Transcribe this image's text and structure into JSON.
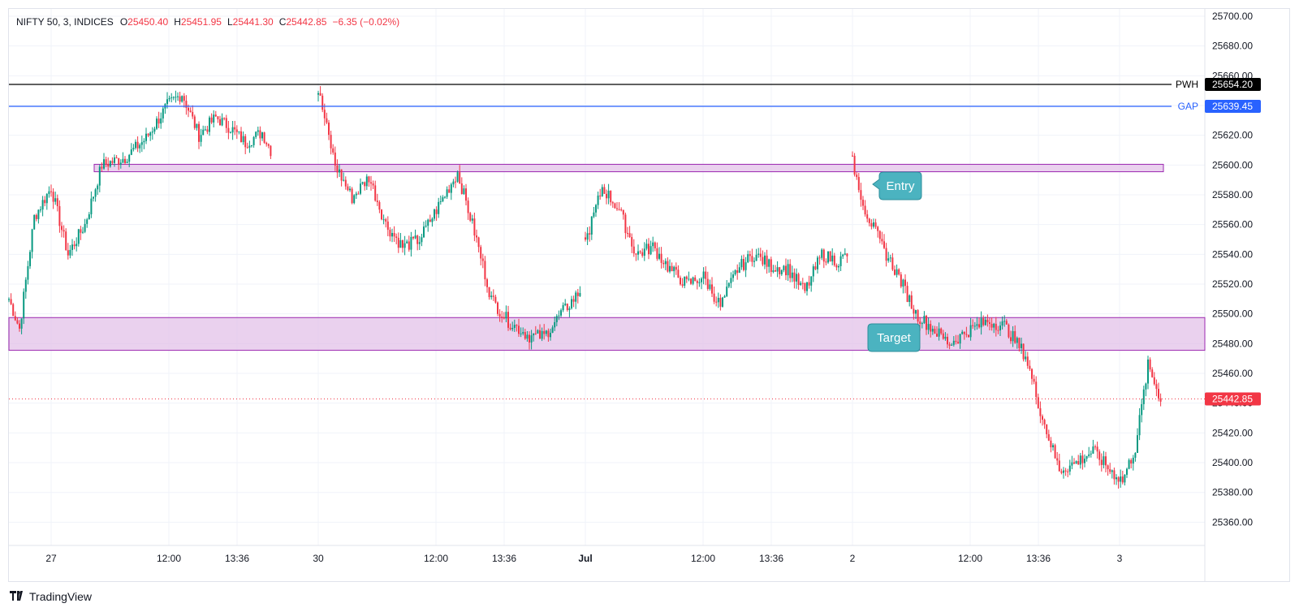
{
  "legend": {
    "symbol": "NIFTY 50, 3, INDICES",
    "o_label": "O",
    "o_value": "25450.40",
    "h_label": "H",
    "h_value": "25451.95",
    "l_label": "L",
    "l_value": "25441.30",
    "c_label": "C",
    "c_value": "25442.85",
    "change": "−6.35 (−0.02%)"
  },
  "brand": {
    "name": "TradingView",
    "logo": "tradingview-logo-icon"
  },
  "colors": {
    "up": "#089981",
    "down": "#f23645",
    "grid": "#f0f3fa",
    "pwh": "#000000",
    "gap": "#2962ff",
    "zone_fill": "#e1bee7",
    "zone_border": "#9c27b0",
    "note": "#4bb3c0"
  },
  "chart_data": {
    "type": "candlestick",
    "ylim": [
      25350,
      25710
    ],
    "y_ticks": [
      "25360.00",
      "25380.00",
      "25400.00",
      "25420.00",
      "25440.00",
      "25460.00",
      "25480.00",
      "25500.00",
      "25520.00",
      "25540.00",
      "25560.00",
      "25580.00",
      "25600.00",
      "25620.00",
      "25640.00",
      "25660.00",
      "25680.00",
      "25700.00"
    ],
    "x_ticks": [
      "27",
      "12:00",
      "13:36",
      "30",
      "12:00",
      "13:36",
      "Jul",
      "12:00",
      "13:36",
      "2",
      "12:00",
      "13:36",
      "3"
    ],
    "bold_x_ticks": [
      "Jul"
    ],
    "horizontal_lines": [
      {
        "label": "PWH",
        "value": 25654.2,
        "value_text": "25654.20",
        "color": "#000000"
      },
      {
        "label": "GAP",
        "value": 25639.45,
        "value_text": "25639.45",
        "color": "#2962ff"
      }
    ],
    "last_price": {
      "value": 25442.85,
      "value_text": "25442.85"
    },
    "zones": [
      {
        "from": 25595.5,
        "to": 25600.5
      },
      {
        "from": 25475.5,
        "to": 25497.5
      }
    ],
    "annotations": [
      {
        "text": "Entry",
        "value": 25586
      },
      {
        "text": "Target",
        "value": 25484
      }
    ],
    "sessions": [
      {
        "name": "27",
        "keypoints": [
          [
            0,
            25510
          ],
          [
            5,
            25490
          ],
          [
            12,
            25565
          ],
          [
            20,
            25585
          ],
          [
            28,
            25540
          ],
          [
            36,
            25560
          ],
          [
            44,
            25600
          ],
          [
            55,
            25605
          ],
          [
            65,
            25618
          ],
          [
            75,
            25640
          ],
          [
            82,
            25648
          ],
          [
            90,
            25620
          ],
          [
            98,
            25632
          ],
          [
            105,
            25625
          ],
          [
            112,
            25615
          ],
          [
            120,
            25622
          ],
          [
            124,
            25610
          ]
        ]
      },
      {
        "name": "30",
        "keypoints": [
          [
            0,
            25650
          ],
          [
            8,
            25600
          ],
          [
            16,
            25578
          ],
          [
            24,
            25592
          ],
          [
            32,
            25560
          ],
          [
            40,
            25545
          ],
          [
            48,
            25550
          ],
          [
            56,
            25570
          ],
          [
            66,
            25595
          ],
          [
            74,
            25555
          ],
          [
            82,
            25510
          ],
          [
            90,
            25495
          ],
          [
            100,
            25485
          ],
          [
            107,
            25485
          ],
          [
            115,
            25500
          ],
          [
            124,
            25515
          ]
        ]
      },
      {
        "name": "Jul",
        "keypoints": [
          [
            0,
            25548
          ],
          [
            8,
            25585
          ],
          [
            16,
            25570
          ],
          [
            24,
            25540
          ],
          [
            32,
            25545
          ],
          [
            40,
            25530
          ],
          [
            48,
            25520
          ],
          [
            56,
            25525
          ],
          [
            64,
            25505
          ],
          [
            72,
            25530
          ],
          [
            80,
            25540
          ],
          [
            88,
            25532
          ],
          [
            96,
            25530
          ],
          [
            104,
            25515
          ],
          [
            112,
            25540
          ],
          [
            120,
            25535
          ],
          [
            124,
            25540
          ]
        ]
      },
      {
        "name": "2",
        "keypoints": [
          [
            0,
            25602
          ],
          [
            6,
            25570
          ],
          [
            14,
            25545
          ],
          [
            22,
            25525
          ],
          [
            30,
            25500
          ],
          [
            38,
            25490
          ],
          [
            46,
            25480
          ],
          [
            54,
            25488
          ],
          [
            64,
            25495
          ],
          [
            72,
            25492
          ],
          [
            82,
            25472
          ],
          [
            90,
            25430
          ],
          [
            98,
            25395
          ],
          [
            106,
            25400
          ],
          [
            114,
            25408
          ],
          [
            122,
            25395
          ],
          [
            128,
            25388
          ],
          [
            134,
            25410
          ],
          [
            140,
            25465
          ],
          [
            146,
            25443
          ]
        ]
      }
    ]
  }
}
